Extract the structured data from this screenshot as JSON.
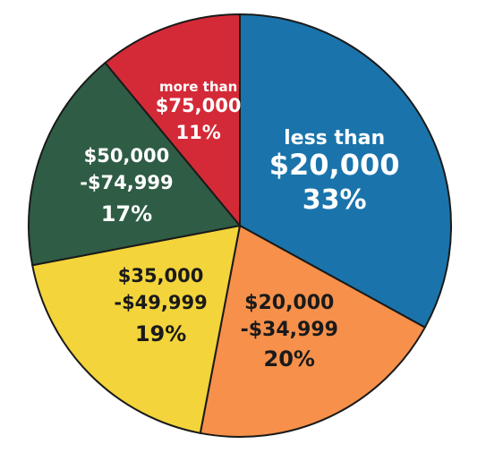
{
  "chart_data": {
    "type": "pie",
    "title": "",
    "slices": [
      {
        "lines": [
          "less than",
          "$20,000"
        ],
        "pct_text": "33%",
        "value": 33,
        "color": "#1a74ab",
        "text_color": "#ffffff"
      },
      {
        "lines": [
          "$20,000",
          "-$34,999"
        ],
        "pct_text": "20%",
        "value": 20,
        "color": "#f6904a",
        "text_color": "#1a1a1a"
      },
      {
        "lines": [
          "$35,000",
          "-$49,999"
        ],
        "pct_text": "19%",
        "value": 19,
        "color": "#f3d43a",
        "text_color": "#1a1a1a"
      },
      {
        "lines": [
          "$50,000",
          "-$74,999"
        ],
        "pct_text": "17%",
        "value": 17,
        "color": "#2f5c45",
        "text_color": "#ffffff"
      },
      {
        "lines": [
          "more than",
          "$75,000"
        ],
        "pct_text": "11%",
        "value": 11,
        "color": "#d42a38",
        "text_color": "#ffffff"
      }
    ],
    "start_angle_deg": 0,
    "direction": "clockwise",
    "outline_color": "#1a1a1a"
  }
}
